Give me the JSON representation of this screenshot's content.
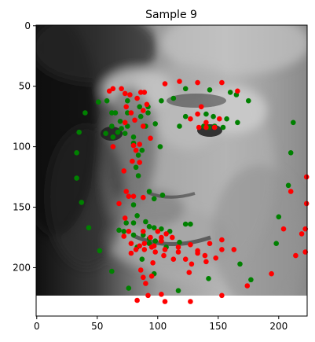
{
  "chart_data": {
    "type": "scatter",
    "title": "Sample 9",
    "xlabel": "",
    "ylabel": "",
    "xlim": [
      -0.5,
      223.5
    ],
    "ylim": [
      240,
      -0.5
    ],
    "image_extent": {
      "x": [
        -0.5,
        223.5
      ],
      "y": [
        222.5,
        -0.5
      ]
    },
    "image_description": "grayscale face photograph",
    "x_ticks": [
      0,
      50,
      100,
      150,
      200
    ],
    "y_ticks": [
      0,
      50,
      100,
      150,
      200
    ],
    "grid": false,
    "legend": "none",
    "series": [
      {
        "color": "#008000",
        "points": [
          [
            51,
            63
          ],
          [
            58,
            62
          ],
          [
            75,
            62
          ],
          [
            85,
            67
          ],
          [
            92,
            67
          ],
          [
            103,
            62
          ],
          [
            113,
            60
          ],
          [
            123,
            52
          ],
          [
            143,
            53
          ],
          [
            160,
            55
          ],
          [
            165,
            57
          ],
          [
            175,
            62
          ],
          [
            40,
            72
          ],
          [
            62,
            72
          ],
          [
            65,
            72
          ],
          [
            75,
            72
          ],
          [
            92,
            72
          ],
          [
            123,
            75
          ],
          [
            140,
            73
          ],
          [
            146,
            75
          ],
          [
            157,
            77
          ],
          [
            69,
            79
          ],
          [
            86,
            75
          ],
          [
            98,
            81
          ],
          [
            118,
            83
          ],
          [
            138,
            83
          ],
          [
            142,
            84
          ],
          [
            147,
            83
          ],
          [
            154,
            84
          ],
          [
            166,
            80
          ],
          [
            212,
            80
          ],
          [
            62,
            83
          ],
          [
            67,
            88
          ],
          [
            70,
            85
          ],
          [
            75,
            83
          ],
          [
            90,
            83
          ],
          [
            57,
            89
          ],
          [
            73,
            89
          ],
          [
            63,
            92
          ],
          [
            80,
            92
          ],
          [
            80,
            97
          ],
          [
            87,
            103
          ],
          [
            102,
            100
          ],
          [
            84,
            107
          ],
          [
            82,
            117
          ],
          [
            35,
            88
          ],
          [
            33,
            105
          ],
          [
            33,
            126
          ],
          [
            210,
            105
          ],
          [
            84,
            124
          ],
          [
            93,
            137
          ],
          [
            97,
            143
          ],
          [
            104,
            140
          ],
          [
            208,
            132
          ],
          [
            37,
            146
          ],
          [
            80,
            148
          ],
          [
            83,
            157
          ],
          [
            200,
            158
          ],
          [
            74,
            163
          ],
          [
            80,
            163
          ],
          [
            90,
            162
          ],
          [
            93,
            166
          ],
          [
            97,
            167
          ],
          [
            103,
            168
          ],
          [
            110,
            170
          ],
          [
            123,
            164
          ],
          [
            127,
            164
          ],
          [
            198,
            180
          ],
          [
            43,
            167
          ],
          [
            68,
            169
          ],
          [
            72,
            170
          ],
          [
            80,
            173
          ],
          [
            88,
            173
          ],
          [
            93,
            176
          ],
          [
            98,
            178
          ],
          [
            103,
            178
          ],
          [
            83,
            183
          ],
          [
            93,
            180
          ],
          [
            107,
            183
          ],
          [
            118,
            179
          ],
          [
            52,
            186
          ],
          [
            168,
            197
          ],
          [
            87,
            193
          ],
          [
            62,
            203
          ],
          [
            97,
            205
          ],
          [
            142,
            209
          ],
          [
            177,
            210
          ],
          [
            76,
            217
          ],
          [
            117,
            219
          ]
        ]
      },
      {
        "color": "#ff0000",
        "points": [
          [
            60,
            54
          ],
          [
            63,
            52
          ],
          [
            70,
            52
          ],
          [
            77,
            57
          ],
          [
            73,
            56
          ],
          [
            86,
            55
          ],
          [
            89,
            55
          ],
          [
            83,
            60
          ],
          [
            106,
            48
          ],
          [
            118,
            46
          ],
          [
            133,
            47
          ],
          [
            153,
            47
          ],
          [
            166,
            54
          ],
          [
            91,
            65
          ],
          [
            74,
            67
          ],
          [
            78,
            72
          ],
          [
            136,
            67
          ],
          [
            133,
            73
          ],
          [
            140,
            80
          ],
          [
            127,
            77
          ],
          [
            140,
            84
          ],
          [
            147,
            84
          ],
          [
            151,
            77
          ],
          [
            134,
            84
          ],
          [
            88,
            70
          ],
          [
            81,
            78
          ],
          [
            73,
            80
          ],
          [
            63,
            100
          ],
          [
            80,
            99
          ],
          [
            85,
            98
          ],
          [
            94,
            93
          ],
          [
            88,
            83
          ],
          [
            79,
            112
          ],
          [
            72,
            120
          ],
          [
            85,
            113
          ],
          [
            82,
            103
          ],
          [
            74,
            137
          ],
          [
            76,
            141
          ],
          [
            80,
            141
          ],
          [
            88,
            142
          ],
          [
            68,
            147
          ],
          [
            73,
            159
          ],
          [
            223,
            125
          ],
          [
            223,
            147
          ],
          [
            210,
            137
          ],
          [
            222,
            168
          ],
          [
            76,
            170
          ],
          [
            72,
            174
          ],
          [
            78,
            180
          ],
          [
            88,
            170
          ],
          [
            89,
            180
          ],
          [
            94,
            175
          ],
          [
            100,
            170
          ],
          [
            103,
            175
          ],
          [
            103,
            178
          ],
          [
            107,
            172
          ],
          [
            112,
            175
          ],
          [
            106,
            185
          ],
          [
            117,
            183
          ],
          [
            127,
            181
          ],
          [
            133,
            186
          ],
          [
            143,
            180
          ],
          [
            153,
            185
          ],
          [
            163,
            185
          ],
          [
            133,
            188
          ],
          [
            139,
            190
          ],
          [
            123,
            193
          ],
          [
            128,
            197
          ],
          [
            140,
            195
          ],
          [
            153,
            177
          ],
          [
            97,
            182
          ],
          [
            78,
            188
          ],
          [
            82,
            185
          ],
          [
            85,
            182
          ],
          [
            89,
            185
          ],
          [
            95,
            183
          ],
          [
            98,
            187
          ],
          [
            105,
            190
          ],
          [
            113,
            193
          ],
          [
            117,
            187
          ],
          [
            86,
            202
          ],
          [
            95,
            207
          ],
          [
            96,
            196
          ],
          [
            88,
            208
          ],
          [
            126,
            204
          ],
          [
            148,
            192
          ],
          [
            90,
            213
          ],
          [
            92,
            223
          ],
          [
            103,
            222
          ],
          [
            83,
            227
          ],
          [
            106,
            228
          ],
          [
            127,
            228
          ],
          [
            153,
            223
          ],
          [
            174,
            215
          ],
          [
            194,
            205
          ],
          [
            214,
            190
          ],
          [
            222,
            187
          ],
          [
            204,
            168
          ],
          [
            219,
            172
          ]
        ]
      }
    ]
  }
}
